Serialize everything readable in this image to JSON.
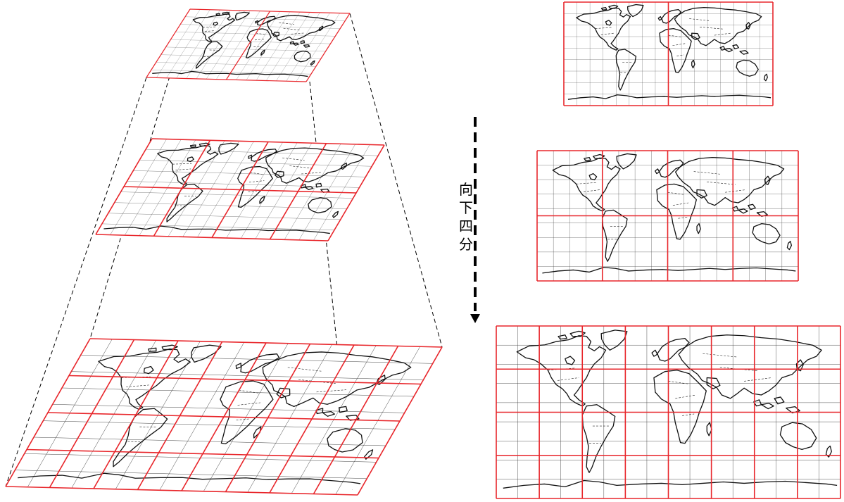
{
  "arrow_label": [
    "向",
    "下",
    "四",
    "分"
  ],
  "colors": {
    "tile_border": "#e8262b",
    "grid": "#3a3a3a",
    "land": "#111111",
    "dash": "#000000",
    "background": "#ffffff"
  },
  "pyramid_levels": [
    {
      "level": 0,
      "tiles_x": 2,
      "tiles_y": 1
    },
    {
      "level": 1,
      "tiles_x": 4,
      "tiles_y": 2
    },
    {
      "level": 2,
      "tiles_x": 8,
      "tiles_y": 4
    }
  ],
  "graticule": {
    "cols": 16,
    "rows": 9
  },
  "icons": {
    "arrow": "dashed-down-arrow-icon"
  }
}
